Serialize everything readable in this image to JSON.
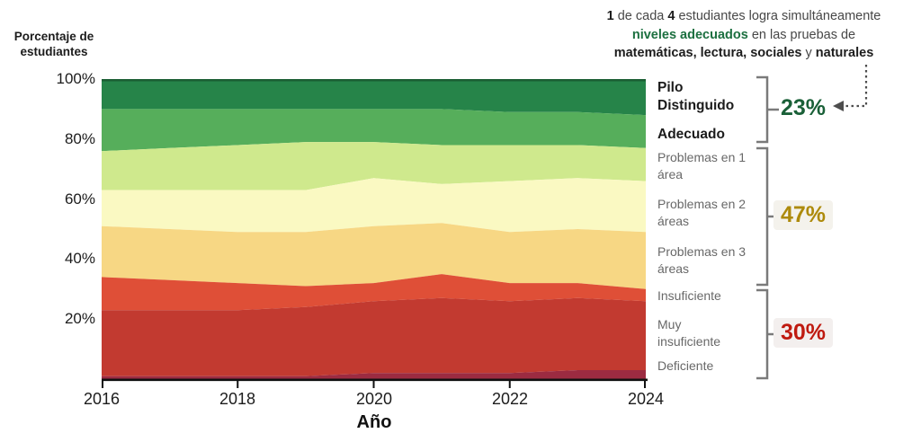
{
  "colors": {
    "accent_green": "#1a6038",
    "accent_olive": "#ad8a0b",
    "accent_red": "#bf1a10",
    "bracket_gray": "#7a7a7a",
    "arrow_gray": "#4d4d4d",
    "chart_top_stroke": "#1b5e33"
  },
  "header": {
    "lines": [
      [
        {
          "t": "1",
          "b": 1
        },
        {
          "t": " de cada "
        },
        {
          "t": "4",
          "b": 1
        },
        {
          "t": " estudiantes logra simultáneamente"
        }
      ],
      [
        {
          "t": "niveles adecuados",
          "g": 1
        },
        {
          "t": " en las pruebas de"
        }
      ],
      [
        {
          "t": "matemáticas, lectura, sociales",
          "b": 1
        },
        {
          "t": " y "
        },
        {
          "t": "naturales",
          "b": 1
        }
      ]
    ]
  },
  "legend": {
    "groups": [
      {
        "percent": "23%",
        "color": "#1a6038",
        "items": [
          "Pilo Distinguido",
          "Adecuado"
        ]
      },
      {
        "percent": "47%",
        "color": "#ad8a0b",
        "items": [
          "Problemas en 1 área",
          "Problemas en 2 áreas",
          "Problemas en 3 áreas"
        ]
      },
      {
        "percent": "30%",
        "color": "#bf1a10",
        "items": [
          "Insuficiente",
          "Muy insuficiente",
          "Deficiente"
        ]
      }
    ]
  },
  "chart_data": {
    "type": "area",
    "stacked": true,
    "title": "1 de cada 4 estudiantes logra simultáneamente niveles adecuados en las pruebas de matemáticas, lectura, sociales y naturales",
    "xlabel": "Año",
    "ylabel": "Porcentaje de estudiantes",
    "ylim": [
      0,
      100
    ],
    "grid": false,
    "legend_position": "right",
    "x": [
      2016,
      2017,
      2018,
      2019,
      2020,
      2021,
      2022,
      2023,
      2024
    ],
    "xticks": [
      "2016",
      "2018",
      "2020",
      "2022",
      "2024"
    ],
    "yticks": [
      "100%",
      "80%",
      "60%",
      "40%",
      "20%"
    ],
    "series": [
      {
        "name": "Pilo Distinguido",
        "color": "#268449",
        "values": [
          10,
          10,
          10,
          10,
          10,
          10,
          11,
          11,
          12
        ]
      },
      {
        "name": "Adecuado",
        "color": "#56ae5b",
        "values": [
          14,
          13,
          12,
          11,
          11,
          12,
          11,
          11,
          11
        ]
      },
      {
        "name": "Problemas en 1 área",
        "color": "#cfe98d",
        "values": [
          13,
          14,
          15,
          16,
          12,
          13,
          12,
          11,
          11
        ]
      },
      {
        "name": "Problemas en 2 áreas",
        "color": "#faf9c2",
        "values": [
          12,
          13,
          14,
          14,
          16,
          13,
          17,
          17,
          17
        ]
      },
      {
        "name": "Problemas en 3 áreas",
        "color": "#f7d784",
        "values": [
          17,
          17,
          17,
          18,
          19,
          17,
          17,
          18,
          19
        ]
      },
      {
        "name": "Insuficiente",
        "color": "#df4f37",
        "values": [
          11,
          10,
          9,
          7,
          6,
          8,
          6,
          5,
          4
        ]
      },
      {
        "name": "Muy insuficiente",
        "color": "#c23a30",
        "values": [
          22,
          22,
          22,
          23,
          24,
          25,
          24,
          24,
          23
        ]
      },
      {
        "name": "Deficiente",
        "color": "#9c2b41",
        "values": [
          1,
          1,
          1,
          1,
          2,
          2,
          2,
          3,
          3
        ]
      }
    ],
    "group_totals": [
      {
        "label": "Pilo Distinguido + Adecuado",
        "value": "23%"
      },
      {
        "label": "Problemas en 1-3 áreas",
        "value": "47%"
      },
      {
        "label": "Insuficiente + Muy insuficiente + Deficiente",
        "value": "30%"
      }
    ]
  }
}
